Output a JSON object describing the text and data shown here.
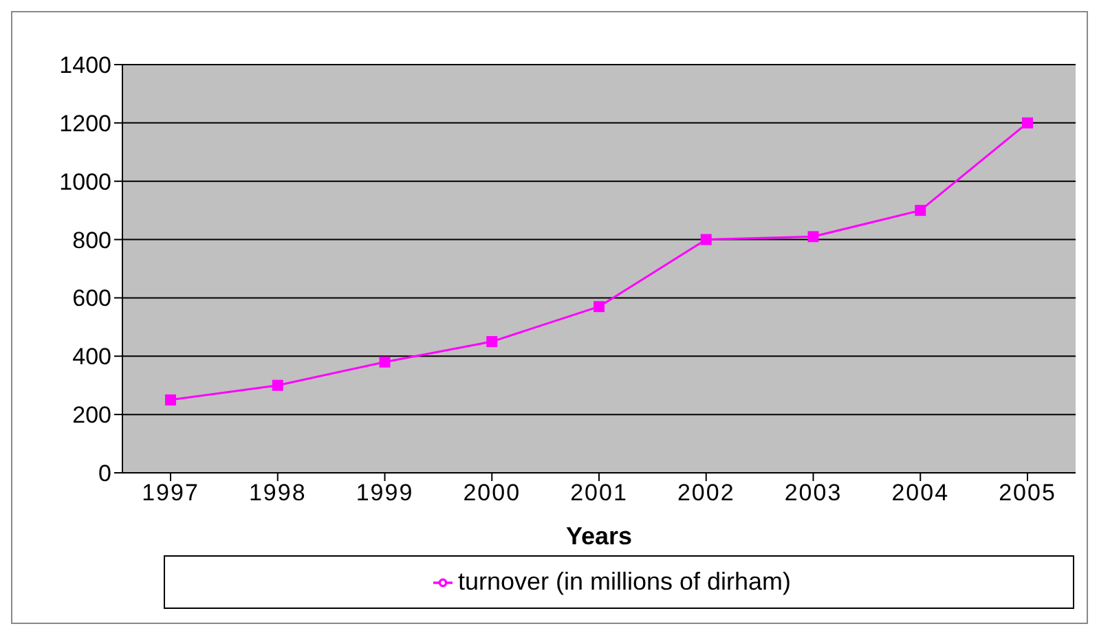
{
  "chart_data": {
    "type": "line",
    "xlabel": "Years",
    "categories": [
      "1997",
      "1998",
      "1999",
      "2000",
      "2001",
      "2002",
      "2003",
      "2004",
      "2005"
    ],
    "series": [
      {
        "name": "turnover (in millions of dirham)",
        "color": "#ff00ff",
        "values": [
          250,
          300,
          380,
          450,
          570,
          800,
          810,
          900,
          1200
        ]
      }
    ],
    "ylim": [
      0,
      1400
    ],
    "yticks": [
      0,
      200,
      400,
      600,
      800,
      1000,
      1200,
      1400
    ],
    "grid": "y",
    "legend": "bottom",
    "marker": "square",
    "line_style": "solid"
  }
}
